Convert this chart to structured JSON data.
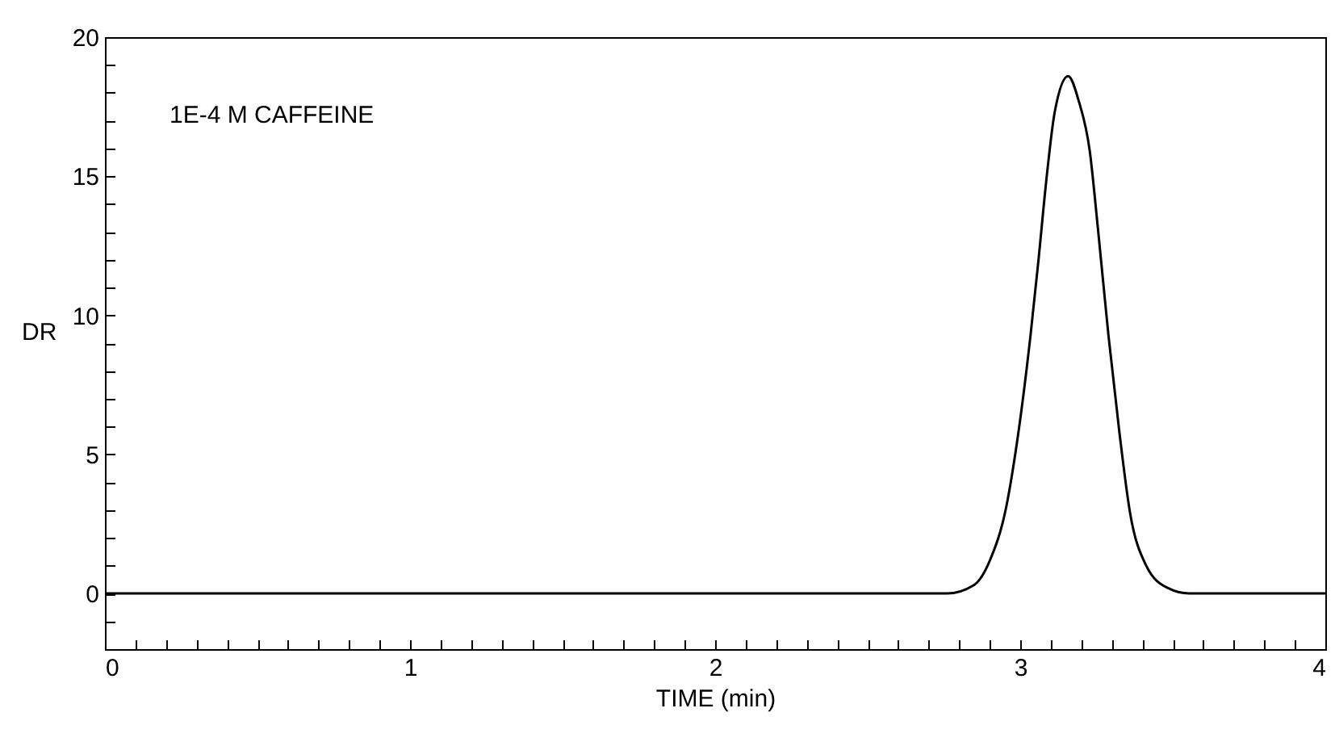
{
  "chart_data": {
    "type": "line",
    "xlabel": "TIME (min)",
    "ylabel": "DR",
    "annotations": [
      "1E-4 M CAFFEINE"
    ],
    "x": [
      0,
      2.76,
      2.848,
      2.901,
      2.954,
      2.989,
      3.034,
      3.06,
      3.086,
      3.113,
      3.157,
      3.192,
      3.228,
      3.254,
      3.289,
      3.325,
      3.36,
      3.413,
      3.483,
      3.554,
      4
    ],
    "series": [
      {
        "color": "#000000",
        "values": [
          0,
          0,
          0.3,
          1.2,
          3.1,
          5.4,
          9.3,
          12,
          14.9,
          17.3,
          18.6,
          17.7,
          15.9,
          13.2,
          9.3,
          5.8,
          2.9,
          1,
          0.2,
          0,
          0
        ]
      }
    ],
    "xlim": [
      0,
      4
    ],
    "ylim": [
      -2,
      20
    ],
    "xticks": [
      0,
      {
        "value": 0.1,
        "label": null
      },
      {
        "value": 0.2,
        "label": null
      },
      {
        "value": 0.3,
        "label": null
      },
      {
        "value": 0.4,
        "label": null
      },
      {
        "value": 0.5,
        "label": null
      },
      {
        "value": 0.6,
        "label": null
      },
      {
        "value": 0.7,
        "label": null
      },
      {
        "value": 0.8,
        "label": null
      },
      {
        "value": 0.9,
        "label": null
      },
      1,
      {
        "value": 1.1,
        "label": null
      },
      {
        "value": 1.2,
        "label": null
      },
      {
        "value": 1.3,
        "label": null
      },
      {
        "value": 1.4,
        "label": null
      },
      {
        "value": 1.5,
        "label": null
      },
      {
        "value": 1.6,
        "label": null
      },
      {
        "value": 1.7,
        "label": null
      },
      {
        "value": 1.8,
        "label": null
      },
      {
        "value": 1.9,
        "label": null
      },
      2,
      {
        "value": 2.1,
        "label": null
      },
      {
        "value": 2.2,
        "label": null
      },
      {
        "value": 2.3,
        "label": null
      },
      {
        "value": 2.4,
        "label": null
      },
      {
        "value": 2.5,
        "label": null
      },
      {
        "value": 2.6,
        "label": null
      },
      {
        "value": 2.7,
        "label": null
      },
      {
        "value": 2.8,
        "label": null
      },
      {
        "value": 2.9,
        "label": null
      },
      3,
      {
        "value": 3.1,
        "label": null
      },
      {
        "value": 3.2,
        "label": null
      },
      {
        "value": 3.3,
        "label": null
      },
      {
        "value": 3.4,
        "label": null
      },
      {
        "value": 3.5,
        "label": null
      },
      {
        "value": 3.6,
        "label": null
      },
      {
        "value": 3.7,
        "label": null
      },
      {
        "value": 3.8,
        "label": null
      },
      {
        "value": 3.9,
        "label": null
      },
      4
    ],
    "yticks": [
      {
        "value": -1,
        "label": null
      },
      0,
      {
        "value": 1,
        "label": null
      },
      {
        "value": 2,
        "label": null
      },
      {
        "value": 3,
        "label": null
      },
      {
        "value": 4,
        "label": null
      },
      5,
      {
        "value": 6,
        "label": null
      },
      {
        "value": 7,
        "label": null
      },
      {
        "value": 8,
        "label": null
      },
      {
        "value": 9,
        "label": null
      },
      10,
      {
        "value": 11,
        "label": null
      },
      {
        "value": 12,
        "label": null
      },
      {
        "value": 13,
        "label": null
      },
      {
        "value": 14,
        "label": null
      },
      15,
      {
        "value": 16,
        "label": null
      },
      {
        "value": 17,
        "label": null
      },
      {
        "value": 18,
        "label": null
      },
      {
        "value": 19,
        "label": null
      },
      20
    ],
    "grid": false,
    "marker": "none",
    "line_style": "solid"
  }
}
